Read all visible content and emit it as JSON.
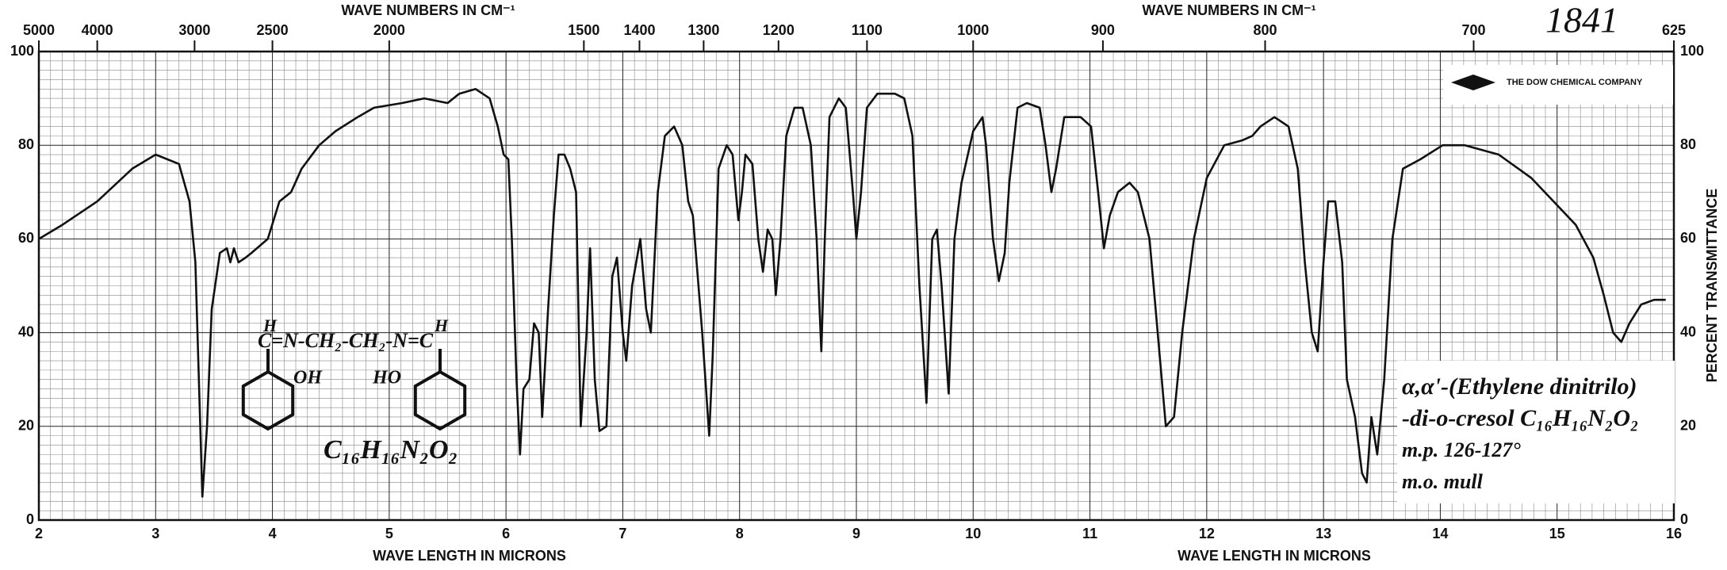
{
  "chart_data": {
    "type": "line",
    "spectrum_number": "1841",
    "company": "THE DOW CHEMICAL COMPANY",
    "x_label": "WAVE LENGTH IN MICRONS",
    "x2_label": "WAVE NUMBERS IN CM⁻¹",
    "y_label": "PERCENT TRANSMITTANCE",
    "color": "#111111",
    "grid": true,
    "xlim": [
      2,
      16
    ],
    "xticks": [
      2,
      3,
      4,
      5,
      6,
      7,
      8,
      9,
      10,
      11,
      12,
      13,
      14,
      15,
      16
    ],
    "x2ticks": [
      5000,
      4000,
      3000,
      2500,
      2000,
      1500,
      1400,
      1300,
      1200,
      1100,
      1000,
      900,
      800,
      700,
      625
    ],
    "ylim": [
      0,
      100
    ],
    "yticks": [
      0,
      20,
      40,
      60,
      80,
      100
    ],
    "x": [
      2.0,
      2.2,
      2.5,
      2.8,
      3.0,
      3.2,
      3.29,
      3.34,
      3.4,
      3.44,
      3.48,
      3.55,
      3.61,
      3.64,
      3.67,
      3.71,
      3.77,
      3.82,
      3.96,
      4.06,
      4.16,
      4.25,
      4.4,
      4.54,
      4.73,
      4.87,
      5.11,
      5.3,
      5.5,
      5.6,
      5.74,
      5.86,
      5.93,
      5.98,
      6.02,
      6.05,
      6.09,
      6.12,
      6.15,
      6.2,
      6.24,
      6.28,
      6.31,
      6.36,
      6.41,
      6.45,
      6.5,
      6.55,
      6.6,
      6.64,
      6.69,
      6.72,
      6.76,
      6.8,
      6.86,
      6.91,
      6.95,
      7.0,
      7.03,
      7.08,
      7.15,
      7.2,
      7.24,
      7.3,
      7.36,
      7.44,
      7.51,
      7.56,
      7.6,
      7.68,
      7.74,
      7.77,
      7.82,
      7.89,
      7.94,
      7.99,
      8.02,
      8.05,
      8.11,
      8.16,
      8.2,
      8.24,
      8.28,
      8.31,
      8.35,
      8.4,
      8.47,
      8.54,
      8.61,
      8.66,
      8.7,
      8.73,
      8.77,
      8.85,
      8.91,
      8.97,
      9.0,
      9.04,
      9.09,
      9.18,
      9.33,
      9.41,
      9.48,
      9.54,
      9.6,
      9.65,
      9.69,
      9.73,
      9.79,
      9.84,
      9.9,
      10.0,
      10.08,
      10.11,
      10.17,
      10.22,
      10.27,
      10.31,
      10.38,
      10.46,
      10.57,
      10.62,
      10.67,
      10.71,
      10.78,
      10.92,
      11.01,
      11.07,
      11.12,
      11.17,
      11.24,
      11.34,
      11.41,
      11.51,
      11.58,
      11.65,
      11.72,
      11.79,
      11.89,
      12.0,
      12.15,
      12.3,
      12.39,
      12.46,
      12.58,
      12.7,
      12.78,
      12.84,
      12.9,
      12.95,
      13.0,
      13.04,
      13.1,
      13.16,
      13.2,
      13.27,
      13.33,
      13.37,
      13.41,
      13.46,
      13.52,
      13.59,
      13.68,
      13.83,
      14.02,
      14.21,
      14.5,
      14.78,
      14.97,
      15.16,
      15.31,
      15.4,
      15.48,
      15.55,
      15.62,
      15.72,
      15.83,
      15.93
    ],
    "values": [
      60,
      63,
      68,
      75,
      78,
      76,
      68,
      55,
      5,
      20,
      45,
      57,
      58,
      55,
      58,
      55,
      56,
      57,
      60,
      68,
      70,
      75,
      80,
      83,
      86,
      88,
      89,
      90,
      89,
      91,
      92,
      90,
      84,
      78,
      77,
      60,
      30,
      14,
      28,
      30,
      42,
      40,
      22,
      45,
      65,
      78,
      78,
      75,
      70,
      20,
      40,
      58,
      30,
      19,
      20,
      52,
      56,
      40,
      34,
      50,
      60,
      45,
      40,
      70,
      82,
      84,
      80,
      68,
      65,
      40,
      18,
      35,
      75,
      80,
      78,
      64,
      70,
      78,
      76,
      60,
      53,
      62,
      60,
      48,
      60,
      82,
      88,
      88,
      80,
      60,
      36,
      60,
      86,
      90,
      88,
      70,
      60,
      70,
      88,
      91,
      91,
      90,
      82,
      50,
      25,
      60,
      62,
      50,
      27,
      60,
      72,
      83,
      86,
      80,
      60,
      51,
      57,
      72,
      88,
      89,
      88,
      80,
      70,
      75,
      86,
      86,
      84,
      70,
      58,
      65,
      70,
      72,
      70,
      60,
      40,
      20,
      22,
      40,
      60,
      73,
      80,
      81,
      82,
      84,
      86,
      84,
      75,
      55,
      40,
      36,
      55,
      68,
      68,
      55,
      30,
      22,
      10,
      8,
      22,
      14,
      30,
      60,
      75,
      77,
      80,
      80,
      78,
      73,
      68,
      63,
      56,
      48,
      40,
      38,
      42,
      46,
      47,
      47
    ],
    "structure": {
      "top_h_left": "H",
      "chain": "C=N-CH₂-CH₂-N=C",
      "top_h_right": "H",
      "oh": "OH",
      "ho": "HO",
      "formula": "C₁₆H₁₆N₂O₂"
    },
    "notes": [
      "α,α'-(Ethylene dinitrilo)",
      "-di-o-cresol C₁₆H₁₆N₂O₂",
      "m.p. 126-127°",
      "m.o. mull"
    ]
  }
}
